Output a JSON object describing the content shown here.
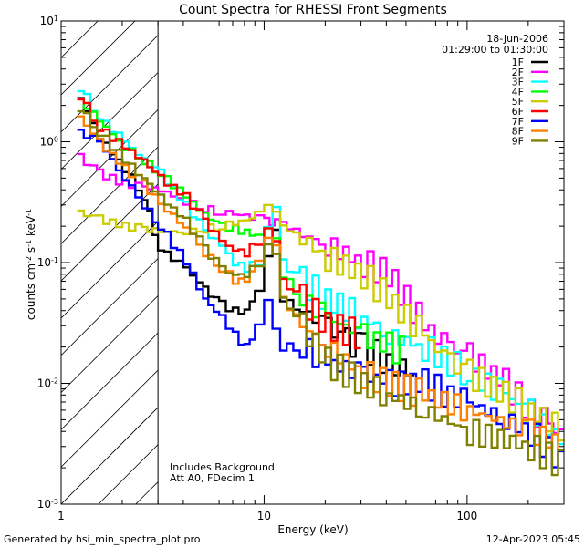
{
  "chart_data": {
    "type": "line",
    "title": "Count Spectra for RHESSI Front Segments",
    "xlabel": "Energy (keV)",
    "ylabel_parts": [
      "counts cm",
      "-2",
      " s",
      "-1",
      " keV",
      "-1"
    ],
    "xscale": "log",
    "yscale": "log",
    "xlim": [
      1,
      300
    ],
    "ylim": [
      0.001,
      10
    ],
    "x_ticks": [
      {
        "value": 1,
        "label": "1"
      },
      {
        "value": 10,
        "label": "10"
      },
      {
        "value": 100,
        "label": "100"
      }
    ],
    "y_ticks": [
      {
        "value": 0.001,
        "base": "10",
        "exp": "-3"
      },
      {
        "value": 0.01,
        "base": "10",
        "exp": "-2"
      },
      {
        "value": 0.1,
        "base": "10",
        "exp": "-1"
      },
      {
        "value": 1,
        "base": "10",
        "exp": "0"
      },
      {
        "value": 10,
        "base": "10",
        "exp": "1"
      }
    ],
    "hatched_region_x": [
      1,
      3
    ],
    "annotations": [
      "Includes Background",
      "Att A0, FDecim 1"
    ],
    "legend_header": [
      "18-Jun-2006",
      "01:29:00 to 01:30:00"
    ],
    "legend_position": "top-right",
    "series": [
      {
        "name": "1F",
        "color": "#000000",
        "x": [
          1.2,
          1.5,
          2,
          2.5,
          3,
          4,
          5,
          6,
          7,
          8,
          9,
          10,
          11,
          12,
          15,
          20,
          25,
          30,
          40,
          50,
          55
        ],
        "y": [
          2.3,
          1.1,
          0.6,
          0.35,
          0.13,
          0.09,
          0.06,
          0.045,
          0.04,
          0.04,
          0.06,
          0.12,
          0.2,
          0.05,
          0.04,
          0.03,
          0.022,
          0.02,
          0.015,
          0.012,
          0.011
        ]
      },
      {
        "name": "2F",
        "color": "#ff00ff",
        "x": [
          1.2,
          1.5,
          2,
          2.5,
          3,
          4,
          5,
          6,
          7,
          8,
          9,
          10,
          12,
          15,
          20,
          30,
          40,
          60,
          80,
          100,
          150,
          200,
          250,
          300
        ],
        "y": [
          0.75,
          0.55,
          0.45,
          0.42,
          0.4,
          0.32,
          0.28,
          0.26,
          0.25,
          0.24,
          0.23,
          0.22,
          0.21,
          0.17,
          0.14,
          0.1,
          0.08,
          0.03,
          0.02,
          0.017,
          0.01,
          0.006,
          0.0045,
          0.0035
        ]
      },
      {
        "name": "3F",
        "color": "#00ffff",
        "x": [
          1.2,
          1.5,
          2,
          2.5,
          3,
          4,
          5,
          6,
          7,
          8,
          9,
          10,
          11,
          12,
          15,
          20,
          30,
          40,
          60,
          80,
          100,
          150,
          200,
          300
        ],
        "y": [
          2.8,
          1.6,
          1.0,
          0.7,
          0.55,
          0.3,
          0.18,
          0.14,
          0.1,
          0.09,
          0.1,
          0.2,
          0.28,
          0.1,
          0.07,
          0.05,
          0.035,
          0.025,
          0.02,
          0.015,
          0.012,
          0.008,
          0.006,
          0.003
        ]
      },
      {
        "name": "4F",
        "color": "#00ff00",
        "x": [
          1.2,
          1.5,
          2,
          2.5,
          3,
          4,
          5,
          6,
          7,
          8,
          9,
          10,
          11,
          12,
          15,
          20,
          30,
          40,
          50
        ],
        "y": [
          2.2,
          1.5,
          0.9,
          0.7,
          0.55,
          0.35,
          0.25,
          0.2,
          0.19,
          0.18,
          0.17,
          0.2,
          0.17,
          0.08,
          0.05,
          0.035,
          0.025,
          0.02,
          0.018
        ]
      },
      {
        "name": "5F",
        "color": "#cccc00",
        "x": [
          1.2,
          1.5,
          2,
          2.5,
          3,
          4,
          5,
          6,
          7,
          8,
          9,
          10,
          11,
          12,
          15,
          20,
          30,
          40,
          60,
          80,
          100,
          150,
          200,
          300
        ],
        "y": [
          0.26,
          0.23,
          0.2,
          0.19,
          0.18,
          0.18,
          0.19,
          0.2,
          0.21,
          0.22,
          0.25,
          0.28,
          0.25,
          0.2,
          0.16,
          0.11,
          0.08,
          0.05,
          0.025,
          0.015,
          0.012,
          0.008,
          0.006,
          0.004
        ]
      },
      {
        "name": "6F",
        "color": "#ff0000",
        "x": [
          1.2,
          1.5,
          2,
          2.5,
          3,
          4,
          5,
          6,
          7,
          8,
          9,
          10,
          11,
          12,
          15,
          20,
          30
        ],
        "y": [
          2.4,
          1.3,
          0.9,
          0.7,
          0.5,
          0.35,
          0.22,
          0.15,
          0.13,
          0.12,
          0.15,
          0.2,
          0.15,
          0.07,
          0.05,
          0.03,
          0.025
        ]
      },
      {
        "name": "7F",
        "color": "#0000ff",
        "x": [
          1.2,
          1.5,
          2,
          2.5,
          3,
          4,
          5,
          6,
          7,
          8,
          9,
          10,
          11,
          12,
          15,
          20,
          30,
          40,
          60,
          80,
          100,
          150,
          200,
          300
        ],
        "y": [
          1.2,
          1.0,
          0.5,
          0.3,
          0.2,
          0.1,
          0.05,
          0.035,
          0.025,
          0.02,
          0.03,
          0.05,
          0.03,
          0.02,
          0.02,
          0.015,
          0.012,
          0.01,
          0.01,
          0.008,
          0.007,
          0.005,
          0.004,
          0.002
        ]
      },
      {
        "name": "8F",
        "color": "#ff8000",
        "x": [
          1.2,
          1.5,
          2,
          2.5,
          3,
          4,
          5,
          6,
          7,
          8,
          9,
          10,
          11,
          12,
          15,
          20,
          30,
          40,
          60,
          100,
          200,
          300
        ],
        "y": [
          1.6,
          1.0,
          0.6,
          0.45,
          0.3,
          0.2,
          0.12,
          0.09,
          0.07,
          0.07,
          0.1,
          0.15,
          0.13,
          0.05,
          0.03,
          0.02,
          0.012,
          0.01,
          0.008,
          0.006,
          0.004,
          0.003
        ]
      },
      {
        "name": "9F",
        "color": "#808000",
        "x": [
          1.2,
          1.5,
          2,
          2.5,
          3,
          4,
          5,
          6,
          7,
          8,
          9,
          10,
          11,
          12,
          15,
          20,
          30,
          40,
          60,
          100,
          200,
          300
        ],
        "y": [
          1.9,
          1.2,
          0.7,
          0.5,
          0.35,
          0.22,
          0.13,
          0.09,
          0.08,
          0.08,
          0.1,
          0.15,
          0.12,
          0.05,
          0.03,
          0.015,
          0.01,
          0.008,
          0.006,
          0.004,
          0.003,
          0.002
        ]
      }
    ]
  },
  "footer": {
    "left": "Generated by hsi_min_spectra_plot.pro",
    "right": "12-Apr-2023 05:45"
  }
}
